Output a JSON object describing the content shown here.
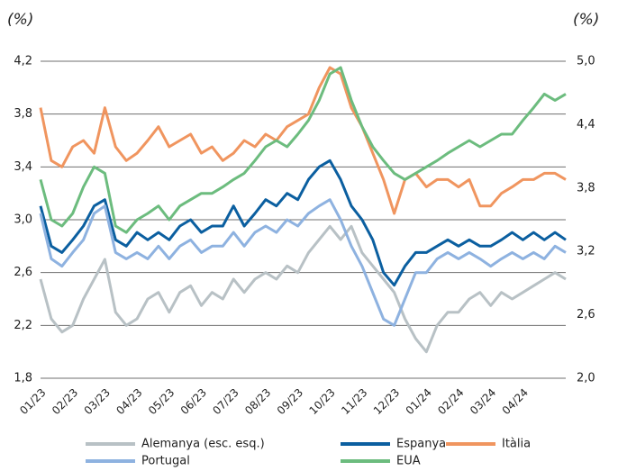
{
  "chart_data": {
    "type": "line",
    "y_unit_left": "(%)",
    "y_unit_right": "(%)",
    "categories": [
      "01/23",
      null,
      null,
      "02/23",
      null,
      null,
      "03/23",
      null,
      null,
      "04/23",
      null,
      null,
      "05/23",
      null,
      null,
      "06/23",
      null,
      null,
      "07/23",
      null,
      null,
      "08/23",
      null,
      null,
      "09/23",
      null,
      null,
      "10/23",
      null,
      null,
      "11/23",
      null,
      null,
      "12/23",
      null,
      null,
      "01/24",
      null,
      null,
      "02/24",
      null,
      null,
      "03/24",
      null,
      null,
      "04/24",
      null,
      null,
      null,
      null
    ],
    "ylim": [
      1.8,
      4.2
    ],
    "yticks": [
      {
        "value": 1.8,
        "label": "1,8"
      },
      {
        "value": 2.2,
        "label": "2,2"
      },
      {
        "value": 2.6,
        "label": "2,6"
      },
      {
        "value": 3.0,
        "label": "3,0"
      },
      {
        "value": 3.4,
        "label": "3,4"
      },
      {
        "value": 3.8,
        "label": "3,8"
      },
      {
        "value": 4.2,
        "label": "4,2"
      }
    ],
    "y2lim": [
      2.0,
      5.0
    ],
    "y2ticks": [
      {
        "value": 2.0,
        "label": "2,0"
      },
      {
        "value": 2.6,
        "label": "2,6"
      },
      {
        "value": 3.2,
        "label": "3,2"
      },
      {
        "value": 3.8,
        "label": "3,8"
      },
      {
        "value": 4.4,
        "label": "4,4"
      },
      {
        "value": 5.0,
        "label": "5,0"
      }
    ],
    "grid": true,
    "series": [
      {
        "name": "Alemanya (esc. esq.)",
        "color": "#b8c1c5",
        "values": [
          2.55,
          2.25,
          2.15,
          2.2,
          2.4,
          2.55,
          2.7,
          2.3,
          2.2,
          2.25,
          2.4,
          2.45,
          2.3,
          2.45,
          2.5,
          2.35,
          2.45,
          2.4,
          2.55,
          2.45,
          2.55,
          2.6,
          2.55,
          2.65,
          2.6,
          2.75,
          2.85,
          2.95,
          2.85,
          2.95,
          2.75,
          2.65,
          2.55,
          2.45,
          2.25,
          2.1,
          2.0,
          2.2,
          2.3,
          2.3,
          2.4,
          2.45,
          2.35,
          2.45,
          2.4,
          2.45,
          2.5,
          2.55,
          2.6,
          2.55
        ]
      },
      {
        "name": "Espanya",
        "color": "#0b5fa0",
        "axis": "y2",
        "values": [
          3.63,
          3.25,
          3.19,
          3.31,
          3.44,
          3.63,
          3.69,
          3.31,
          3.25,
          3.38,
          3.31,
          3.38,
          3.31,
          3.44,
          3.5,
          3.38,
          3.44,
          3.44,
          3.63,
          3.44,
          3.56,
          3.69,
          3.63,
          3.75,
          3.69,
          3.88,
          4.0,
          4.06,
          3.88,
          3.63,
          3.5,
          3.31,
          3.0,
          2.88,
          3.06,
          3.19,
          3.19,
          3.25,
          3.31,
          3.25,
          3.31,
          3.25,
          3.25,
          3.31,
          3.38,
          3.31,
          3.38,
          3.31,
          3.38,
          3.31
        ]
      },
      {
        "name": "Itàlia",
        "color": "#f0955f",
        "axis": "y2",
        "values": [
          4.56,
          4.06,
          4.0,
          4.19,
          4.25,
          4.13,
          4.56,
          4.19,
          4.06,
          4.13,
          4.25,
          4.38,
          4.19,
          4.25,
          4.31,
          4.13,
          4.19,
          4.06,
          4.13,
          4.25,
          4.19,
          4.31,
          4.25,
          4.38,
          4.44,
          4.5,
          4.75,
          4.94,
          4.88,
          4.56,
          4.38,
          4.13,
          3.88,
          3.56,
          3.88,
          3.94,
          3.81,
          3.88,
          3.88,
          3.81,
          3.88,
          3.63,
          3.63,
          3.75,
          3.81,
          3.88,
          3.88,
          3.94,
          3.94,
          3.88
        ]
      },
      {
        "name": "Portugal",
        "color": "#8eb2e0",
        "axis": "y2",
        "values": [
          3.56,
          3.13,
          3.06,
          3.19,
          3.31,
          3.56,
          3.63,
          3.19,
          3.13,
          3.19,
          3.13,
          3.25,
          3.13,
          3.25,
          3.31,
          3.19,
          3.25,
          3.25,
          3.38,
          3.25,
          3.38,
          3.44,
          3.38,
          3.5,
          3.44,
          3.56,
          3.63,
          3.69,
          3.5,
          3.25,
          3.06,
          2.81,
          2.56,
          2.5,
          2.75,
          3.0,
          3.0,
          3.13,
          3.19,
          3.13,
          3.19,
          3.13,
          3.06,
          3.13,
          3.19,
          3.13,
          3.19,
          3.13,
          3.25,
          3.19
        ]
      },
      {
        "name": "EUA",
        "color": "#6cbc7e",
        "axis": "y2",
        "values": [
          3.88,
          3.5,
          3.44,
          3.56,
          3.81,
          4.0,
          3.94,
          3.44,
          3.38,
          3.5,
          3.56,
          3.63,
          3.5,
          3.63,
          3.69,
          3.75,
          3.75,
          3.81,
          3.88,
          3.94,
          4.06,
          4.19,
          4.25,
          4.19,
          4.31,
          4.44,
          4.63,
          4.88,
          4.94,
          4.63,
          4.38,
          4.19,
          4.06,
          3.94,
          3.88,
          3.94,
          4.0,
          4.06,
          4.13,
          4.19,
          4.25,
          4.19,
          4.25,
          4.31,
          4.31,
          4.44,
          4.56,
          4.69,
          4.63,
          4.69
        ]
      }
    ]
  }
}
